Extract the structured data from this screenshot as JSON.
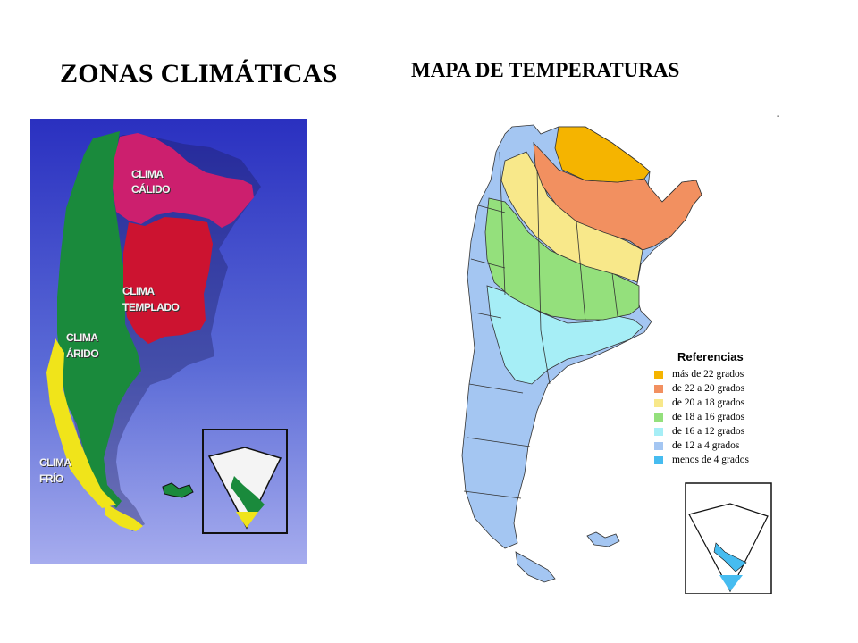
{
  "titles": {
    "left": "ZONAS CLIMÁTICAS",
    "right": "MAPA DE TEMPERATURAS"
  },
  "climate_map": {
    "zones": [
      {
        "line1": "CLIMA",
        "line2": "CÁLIDO",
        "color": "#cc1f6e"
      },
      {
        "line1": "CLIMA",
        "line2": "TEMPLADO",
        "color": "#cc1330"
      },
      {
        "line1": "CLIMA",
        "line2": "ÁRIDO",
        "color": "#1a8a3c"
      },
      {
        "line1": "CLIMA",
        "line2": "FRÍO",
        "color": "#f0e41a"
      }
    ],
    "background": "#3b44c8"
  },
  "temperature_map": {
    "legend_title": "Referencias",
    "legend": [
      {
        "label": "más de 22 grados",
        "color": "#f5b400"
      },
      {
        "label": "de 22 a 20 grados",
        "color": "#f29060"
      },
      {
        "label": "de 20 a 18 grados",
        "color": "#f8e88a"
      },
      {
        "label": "de 18 a 16 grados",
        "color": "#94e07c"
      },
      {
        "label": "de 16 a 12 grados",
        "color": "#a6eef6"
      },
      {
        "label": "de 12 a 4 grados",
        "color": "#a4c6f2"
      },
      {
        "label": "menos de 4 grados",
        "color": "#46bcf0"
      }
    ],
    "corner_mark": "-"
  }
}
